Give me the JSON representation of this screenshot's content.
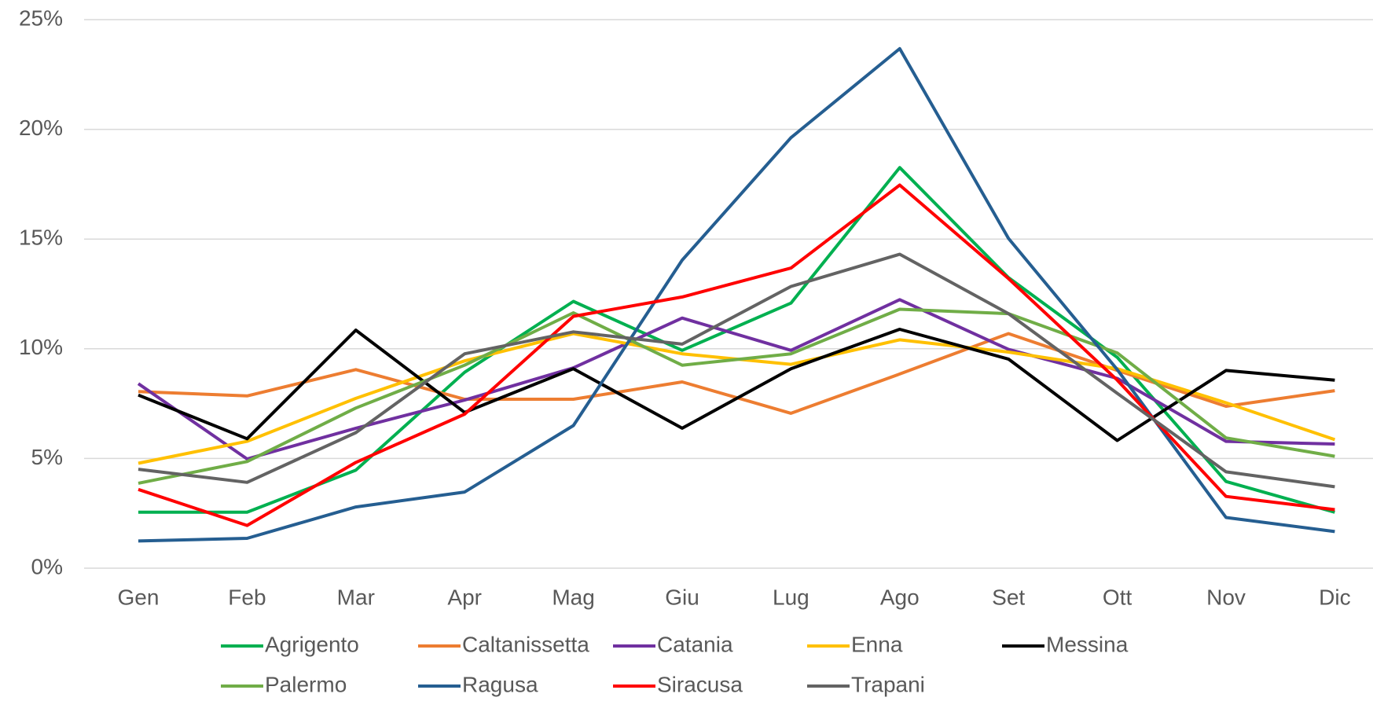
{
  "chart_data": {
    "type": "line",
    "categories": [
      "Gen",
      "Feb",
      "Mar",
      "Apr",
      "Mag",
      "Giu",
      "Lug",
      "Ago",
      "Set",
      "Ott",
      "Nov",
      "Dic"
    ],
    "series": [
      {
        "name": "Agrigento",
        "color": "#00b050",
        "values": [
          2.55,
          2.55,
          4.47,
          8.93,
          12.16,
          9.93,
          12.08,
          18.26,
          13.24,
          9.61,
          3.95,
          2.55
        ]
      },
      {
        "name": "Caltanissetta",
        "color": "#ed7d31",
        "values": [
          8.05,
          7.85,
          9.05,
          7.7,
          7.7,
          8.49,
          7.06,
          8.85,
          10.69,
          9.01,
          7.38,
          8.09
        ]
      },
      {
        "name": "Catania",
        "color": "#7030a0",
        "values": [
          8.41,
          4.98,
          6.38,
          7.66,
          9.13,
          11.4,
          9.93,
          12.24,
          9.97,
          8.65,
          5.78,
          5.66
        ]
      },
      {
        "name": "Enna",
        "color": "#ffc000",
        "values": [
          4.78,
          5.78,
          7.74,
          9.45,
          10.69,
          9.77,
          9.29,
          10.41,
          9.85,
          9.09,
          7.54,
          5.86
        ]
      },
      {
        "name": "Messina",
        "color": "#000000",
        "values": [
          7.89,
          5.9,
          10.85,
          7.1,
          9.09,
          6.38,
          9.09,
          10.89,
          9.53,
          5.82,
          9.01,
          8.57
        ]
      },
      {
        "name": "Palermo",
        "color": "#70ad47",
        "values": [
          3.87,
          4.86,
          7.3,
          9.25,
          11.64,
          9.25,
          9.77,
          11.8,
          11.6,
          9.81,
          5.94,
          5.1
        ]
      },
      {
        "name": "Ragusa",
        "color": "#255e91",
        "values": [
          1.24,
          1.36,
          2.79,
          3.47,
          6.5,
          14.04,
          19.62,
          23.68,
          15.03,
          9.05,
          2.31,
          1.67
        ]
      },
      {
        "name": "Siracusa",
        "color": "#ff0000",
        "values": [
          3.59,
          1.95,
          4.82,
          7.02,
          11.48,
          12.36,
          13.68,
          17.46,
          13.2,
          8.57,
          3.27,
          2.67
        ]
      },
      {
        "name": "Trapani",
        "color": "#636363",
        "values": [
          4.51,
          3.91,
          6.18,
          9.77,
          10.77,
          10.21,
          12.84,
          14.31,
          11.6,
          7.97,
          4.39,
          3.71
        ]
      }
    ],
    "ylim": [
      0,
      25
    ],
    "yticks": [
      {
        "value": 0,
        "label": "0%"
      },
      {
        "value": 5,
        "label": "5%"
      },
      {
        "value": 10,
        "label": "10%"
      },
      {
        "value": 15,
        "label": "15%"
      },
      {
        "value": 20,
        "label": "20%"
      },
      {
        "value": 25,
        "label": "25%"
      }
    ],
    "grid": true,
    "legend": "bottom"
  }
}
